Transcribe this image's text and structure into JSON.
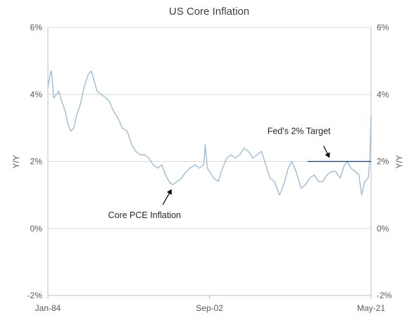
{
  "chart_data": {
    "type": "line",
    "title": "US Core Inflation",
    "ylabel_left": "Y/Y",
    "ylabel_right": "Y/Y",
    "ylim": [
      -2,
      6
    ],
    "y_ticks": [
      -2,
      0,
      2,
      4,
      6
    ],
    "y_tick_labels": [
      "-2%",
      "0%",
      "2%",
      "4%",
      "6%"
    ],
    "xlim": [
      "1984-01",
      "2021-05"
    ],
    "x_tick_labels": [
      "Jan-84",
      "Sep-02",
      "May-21"
    ],
    "x_tick_positions": [
      "1984-01",
      "2002-09",
      "2021-05"
    ],
    "grid": "horizontal",
    "colors": {
      "series": "#9dbcd9",
      "target": "#1f3864",
      "grid": "#d9d9d9",
      "axis": "#bfbfbf",
      "arrow": "#000000"
    },
    "series": [
      {
        "name": "Core PCE Inflation",
        "points": [
          [
            "1984-01",
            4.2
          ],
          [
            "1984-04",
            4.6
          ],
          [
            "1984-06",
            4.7
          ],
          [
            "1984-09",
            3.9
          ],
          [
            "1985-01",
            4.0
          ],
          [
            "1985-04",
            4.1
          ],
          [
            "1985-08",
            3.8
          ],
          [
            "1986-01",
            3.5
          ],
          [
            "1986-05",
            3.1
          ],
          [
            "1986-09",
            2.9
          ],
          [
            "1987-01",
            3.0
          ],
          [
            "1987-05",
            3.4
          ],
          [
            "1987-10",
            3.7
          ],
          [
            "1988-03",
            4.2
          ],
          [
            "1988-09",
            4.6
          ],
          [
            "1989-01",
            4.7
          ],
          [
            "1989-04",
            4.5
          ],
          [
            "1989-09",
            4.1
          ],
          [
            "1990-03",
            4.0
          ],
          [
            "1990-09",
            3.9
          ],
          [
            "1991-02",
            3.8
          ],
          [
            "1991-08",
            3.5
          ],
          [
            "1992-02",
            3.3
          ],
          [
            "1992-08",
            3.0
          ],
          [
            "1993-03",
            2.9
          ],
          [
            "1993-09",
            2.5
          ],
          [
            "1994-03",
            2.3
          ],
          [
            "1994-09",
            2.2
          ],
          [
            "1995-03",
            2.2
          ],
          [
            "1995-09",
            2.1
          ],
          [
            "1996-03",
            1.9
          ],
          [
            "1996-09",
            1.8
          ],
          [
            "1997-03",
            1.9
          ],
          [
            "1997-08",
            1.6
          ],
          [
            "1998-01",
            1.4
          ],
          [
            "1998-06",
            1.3
          ],
          [
            "1998-12",
            1.4
          ],
          [
            "1999-06",
            1.5
          ],
          [
            "2000-01",
            1.7
          ],
          [
            "2000-06",
            1.8
          ],
          [
            "2001-01",
            1.9
          ],
          [
            "2001-07",
            1.8
          ],
          [
            "2002-01",
            1.9
          ],
          [
            "2002-03",
            2.5
          ],
          [
            "2002-06",
            1.8
          ],
          [
            "2002-09",
            1.7
          ],
          [
            "2003-03",
            1.5
          ],
          [
            "2003-09",
            1.4
          ],
          [
            "2004-03",
            1.8
          ],
          [
            "2004-09",
            2.1
          ],
          [
            "2005-03",
            2.2
          ],
          [
            "2005-09",
            2.1
          ],
          [
            "2006-03",
            2.2
          ],
          [
            "2006-09",
            2.4
          ],
          [
            "2007-03",
            2.3
          ],
          [
            "2007-09",
            2.1
          ],
          [
            "2008-03",
            2.2
          ],
          [
            "2008-09",
            2.3
          ],
          [
            "2009-03",
            1.9
          ],
          [
            "2009-09",
            1.5
          ],
          [
            "2010-03",
            1.4
          ],
          [
            "2010-10",
            1.0
          ],
          [
            "2011-04",
            1.3
          ],
          [
            "2011-10",
            1.8
          ],
          [
            "2012-03",
            2.0
          ],
          [
            "2012-09",
            1.7
          ],
          [
            "2013-04",
            1.2
          ],
          [
            "2013-10",
            1.3
          ],
          [
            "2014-04",
            1.5
          ],
          [
            "2014-10",
            1.6
          ],
          [
            "2015-04",
            1.4
          ],
          [
            "2015-10",
            1.4
          ],
          [
            "2016-04",
            1.6
          ],
          [
            "2016-10",
            1.7
          ],
          [
            "2017-04",
            1.7
          ],
          [
            "2017-10",
            1.5
          ],
          [
            "2018-04",
            1.9
          ],
          [
            "2018-08",
            2.0
          ],
          [
            "2019-01",
            1.8
          ],
          [
            "2019-07",
            1.7
          ],
          [
            "2019-12",
            1.6
          ],
          [
            "2020-04",
            1.0
          ],
          [
            "2020-08",
            1.4
          ],
          [
            "2021-01",
            1.5
          ],
          [
            "2021-03",
            2.0
          ],
          [
            "2021-05",
            3.4
          ]
        ]
      }
    ],
    "reference_line": {
      "value": 2,
      "from": "2014-01",
      "to": "2021-05"
    },
    "annotations": [
      {
        "text": "Core PCE Inflation",
        "target": [
          "1998-06",
          1.3
        ]
      },
      {
        "text": "Fed's 2% Target",
        "target": [
          "2016-06",
          2.0
        ]
      }
    ]
  }
}
